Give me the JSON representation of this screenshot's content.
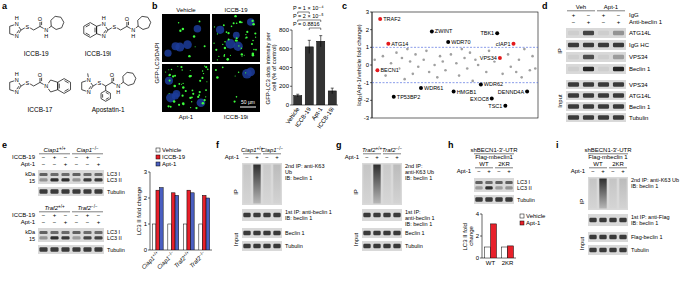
{
  "panels": {
    "a": {
      "letter": "a",
      "atoms": {
        "n": "N",
        "s": "S",
        "o": "O",
        "h": "H"
      },
      "compounds": [
        "ICCB-19",
        "ICCB-19i",
        "ICCB-17",
        "Apostatin-1"
      ]
    },
    "b": {
      "letter": "b",
      "stain": "GFP-LC3/DAPI",
      "images": [
        "Vehicle",
        "ICCB-19",
        "Apt-1",
        "ICCB-19i"
      ],
      "scale_bar": "50 µm"
    },
    "c": {
      "letter": "c"
    },
    "d": {
      "letter": "d",
      "conditions": [
        "Veh",
        "Apt-1"
      ],
      "treatments": [
        {
          "label": "IgG",
          "signs": [
            "+",
            "−",
            "+",
            "−"
          ]
        },
        {
          "label": "Anti-beclin 1",
          "signs": [
            "−",
            "+",
            "−",
            "+"
          ]
        }
      ],
      "ip_label": "IP",
      "ip_rows": [
        "ATG14L",
        "IgG HC",
        "VPS34",
        "Beclin 1"
      ],
      "input_label": "Input",
      "input_rows": [
        "VPS34",
        "ATG14L",
        "Beclin 1",
        "Tubulin"
      ]
    },
    "e": {
      "letter": "e",
      "kda_label": "kDa",
      "kda_marker": 15,
      "rows": [
        "LC3 I",
        "LC3 II",
        "Tubulin"
      ],
      "blots": [
        {
          "genotypes": [
            "Ciap1+/+",
            "Ciap1−/−"
          ],
          "treatments": [
            {
              "label": "ICCB-19",
              "signs": [
                "−",
                "+",
                "−",
                "−",
                "+",
                "−"
              ]
            },
            {
              "label": "Apt-1",
              "signs": [
                "−",
                "−",
                "+",
                "−",
                "−",
                "+"
              ]
            }
          ]
        },
        {
          "genotypes": [
            "Traf2+/+",
            "Traf2−/−"
          ],
          "treatments": [
            {
              "label": "ICCB-19",
              "signs": [
                "−",
                "+",
                "−",
                "−",
                "+",
                "−"
              ]
            },
            {
              "label": "Apt-1",
              "signs": [
                "−",
                "−",
                "+",
                "−",
                "−",
                "+"
              ]
            }
          ]
        }
      ]
    },
    "f": {
      "letter": "f",
      "genotypes": [
        "Ciap1+/+",
        "Ciap1−/−"
      ],
      "treatment": {
        "label": "Apt-1",
        "signs": [
          "−",
          "+",
          "−",
          "+"
        ]
      },
      "ip_label": "IP",
      "ip_rows": [
        [
          "2nd IP: anti-K63 Ub",
          "IB: beclin 1"
        ],
        [
          "1st IP: anti-beclin 1",
          "IB: beclin 1"
        ]
      ],
      "input_label": "Input",
      "input_rows": [
        "Beclin 1",
        "Tubulin"
      ]
    },
    "g": {
      "letter": "g",
      "genotypes": [
        "Traf2+/+",
        "Traf2−/−"
      ],
      "treatment": {
        "label": "Apt-1",
        "signs": [
          "−",
          "+",
          "−",
          "+"
        ]
      },
      "ip_label": "IP",
      "ip_rows": [
        [
          "2nd IP: anti-K63 Ub",
          "IB: beclin 1"
        ],
        [
          "1st IP: anti-beclin 1",
          "IB: beclin 1"
        ]
      ],
      "input_label": "Input",
      "input_rows": [
        "Beclin 1",
        "Tubulin"
      ]
    },
    "h": {
      "letter": "h",
      "construct": "shBECN1-3′-UTR",
      "rescue": "Flag-mbeclin1",
      "variants": [
        "WT",
        "2KR"
      ],
      "treatment": {
        "label": "Apt-1",
        "signs": [
          "−",
          "+",
          "−",
          "+"
        ]
      },
      "rows": [
        "LC3 I",
        "LC3 II",
        "Tubulin"
      ]
    },
    "i": {
      "letter": "i",
      "construct": "shBECN1-3′-UTR",
      "rescue": "Flag-mbeclin 1",
      "variants": [
        "WT",
        "2KR"
      ],
      "treatment": {
        "label": "Apt-1",
        "signs": [
          "−",
          "+",
          "−",
          "+"
        ]
      },
      "ip_label": "IP",
      "ip_rows": [
        [
          "2nd IP: anti-K63 Ub",
          "IB: beclin 1"
        ],
        [
          "1st IP: anti-Flag",
          "IB: beclin 1"
        ]
      ],
      "input_label": "Input",
      "input_rows": [
        "Flag-beclin 1",
        "Tubulin"
      ]
    }
  },
  "chart_data": [
    {
      "type": "bar",
      "y_label": "GFP-LC3 dots intensity per cell (% of control)",
      "categories": [
        "Vehicle",
        "ICCB-19",
        "Apt-1",
        "ICCB-19i"
      ],
      "values": [
        100,
        620,
        680,
        150
      ],
      "errors": [
        15,
        70,
        60,
        30
      ],
      "color": "#333333",
      "ylim": [
        0,
        800
      ],
      "yticks": [
        0,
        200,
        400,
        600,
        800
      ],
      "annotations": [
        {
          "text": "P = 1 × 10⁻⁴",
          "from": "Vehicle",
          "to": "ICCB-19"
        },
        {
          "text": "P = 2 × 10⁻⁵",
          "from": "Vehicle",
          "to": "Apt-1"
        },
        {
          "text": "P = 0.8816",
          "from": "ICCB-19",
          "to": "Apt-1"
        }
      ]
    },
    {
      "type": "scatter",
      "y_label": "log₂(Apt-1/vehicle fold change)",
      "x": [
        1,
        2,
        3,
        4,
        5,
        6,
        7,
        8,
        9,
        10,
        11,
        12,
        13,
        14,
        15,
        16,
        17,
        18,
        19,
        20,
        21,
        22,
        23,
        24,
        25,
        26,
        27,
        28,
        29,
        30,
        31,
        32,
        33,
        34,
        35,
        36,
        37,
        38,
        39,
        40,
        41,
        42,
        43,
        44,
        45,
        46,
        47,
        48,
        49,
        50,
        51,
        52,
        53,
        54,
        55,
        56,
        57,
        58,
        59,
        60
      ],
      "values": [
        0.3,
        -0.3,
        2.6,
        0.5,
        -0.6,
        1.2,
        0.1,
        -1.8,
        0.7,
        -0.2,
        0.4,
        -0.8,
        0.9,
        0.2,
        -0.5,
        0.6,
        -0.1,
        -1.3,
        0.3,
        0.8,
        -0.4,
        1.9,
        0.0,
        -0.7,
        0.5,
        0.2,
        -0.3,
        1.3,
        0.6,
        -1.5,
        0.1,
        -0.6,
        0.9,
        0.4,
        -0.2,
        0.7,
        -0.9,
        0.3,
        0.0,
        -1.1,
        0.5,
        -0.4,
        0.8,
        -1.9,
        0.2,
        1.8,
        0.4,
        -0.5,
        -2.3,
        0.6,
        -0.1,
        1.2,
        -0.4,
        0.3,
        -0.7,
        0.9,
        -1.5,
        -0.3,
        0.5,
        -0.2
      ],
      "colors": [
        "#a0a0a0",
        "#e31a1c",
        "#e31a1c",
        "#a0a0a0",
        "#a0a0a0",
        "#e31a1c",
        "#a0a0a0",
        "#000000",
        "#a0a0a0",
        "#a0a0a0",
        "#a0a0a0",
        "#a0a0a0",
        "#a0a0a0",
        "#a0a0a0",
        "#a0a0a0",
        "#a0a0a0",
        "#a0a0a0",
        "#000000",
        "#a0a0a0",
        "#a0a0a0",
        "#a0a0a0",
        "#000000",
        "#a0a0a0",
        "#a0a0a0",
        "#a0a0a0",
        "#a0a0a0",
        "#a0a0a0",
        "#000000",
        "#a0a0a0",
        "#000000",
        "#a0a0a0",
        "#a0a0a0",
        "#a0a0a0",
        "#a0a0a0",
        "#a0a0a0",
        "#a0a0a0",
        "#a0a0a0",
        "#a0a0a0",
        "#a0a0a0",
        "#000000",
        "#a0a0a0",
        "#a0a0a0",
        "#a0a0a0",
        "#000000",
        "#a0a0a0",
        "#000000",
        "#e31a1c",
        "#a0a0a0",
        "#000000",
        "#a0a0a0",
        "#a0a0a0",
        "#e31a1c",
        "#a0a0a0",
        "#a0a0a0",
        "#a0a0a0",
        "#a0a0a0",
        "#000000",
        "#a0a0a0",
        "#a0a0a0",
        "#a0a0a0"
      ],
      "labels": [
        null,
        "BECN1",
        "TRAF2",
        null,
        null,
        "ATG14",
        null,
        "TP53BP2",
        null,
        null,
        null,
        null,
        null,
        null,
        null,
        null,
        null,
        "WDR61",
        null,
        null,
        null,
        "ZWINT",
        null,
        null,
        null,
        null,
        null,
        "WDR70",
        null,
        "HMGB1",
        null,
        null,
        null,
        null,
        null,
        null,
        null,
        null,
        null,
        "WDR62",
        null,
        null,
        null,
        "EXOC8",
        null,
        "TBK1",
        "VPS34",
        null,
        "TSC1",
        null,
        null,
        "cIAP1",
        null,
        null,
        null,
        null,
        "DENND4A",
        null,
        null,
        null
      ],
      "reference_lines": [
        -1,
        1
      ],
      "xlim": [
        0,
        61
      ],
      "ylim": [
        -3,
        3
      ],
      "yticks": [
        -3,
        -2,
        -1,
        0,
        1,
        2,
        3
      ],
      "tick_labels": "y"
    },
    {
      "type": "bar",
      "y_label": "LC3 II fold change",
      "categories": [
        "Ciap1+/+",
        "Ciap1−/−",
        "Traf2+/+",
        "Traf2−/−"
      ],
      "series": [
        {
          "name": "Vehicle",
          "color": "#ffffff",
          "values": [
            1,
            1,
            1,
            1
          ]
        },
        {
          "name": "ICCB-19",
          "color": "#e8202a",
          "values": [
            2.3,
            2.2,
            2.3,
            2.1
          ]
        },
        {
          "name": "Apt-1",
          "color": "#4a5fc1",
          "values": [
            2.4,
            2.1,
            2.2,
            2.0
          ]
        }
      ],
      "ylim": [
        0,
        3
      ],
      "yticks": [
        0,
        1,
        2,
        3
      ],
      "legend": "top"
    },
    {
      "type": "bar",
      "y_label": "LC3 II fold change",
      "categories": [
        "WT",
        "2KR"
      ],
      "series": [
        {
          "name": "Vehicle",
          "color": "#ffffff",
          "values": [
            1,
            1
          ]
        },
        {
          "name": "Apt-1",
          "color": "#e8202a",
          "values": [
            3.1,
            1.1
          ]
        }
      ],
      "ylim": [
        0,
        4
      ],
      "yticks": [
        0,
        2,
        4
      ],
      "legend": "right"
    }
  ]
}
